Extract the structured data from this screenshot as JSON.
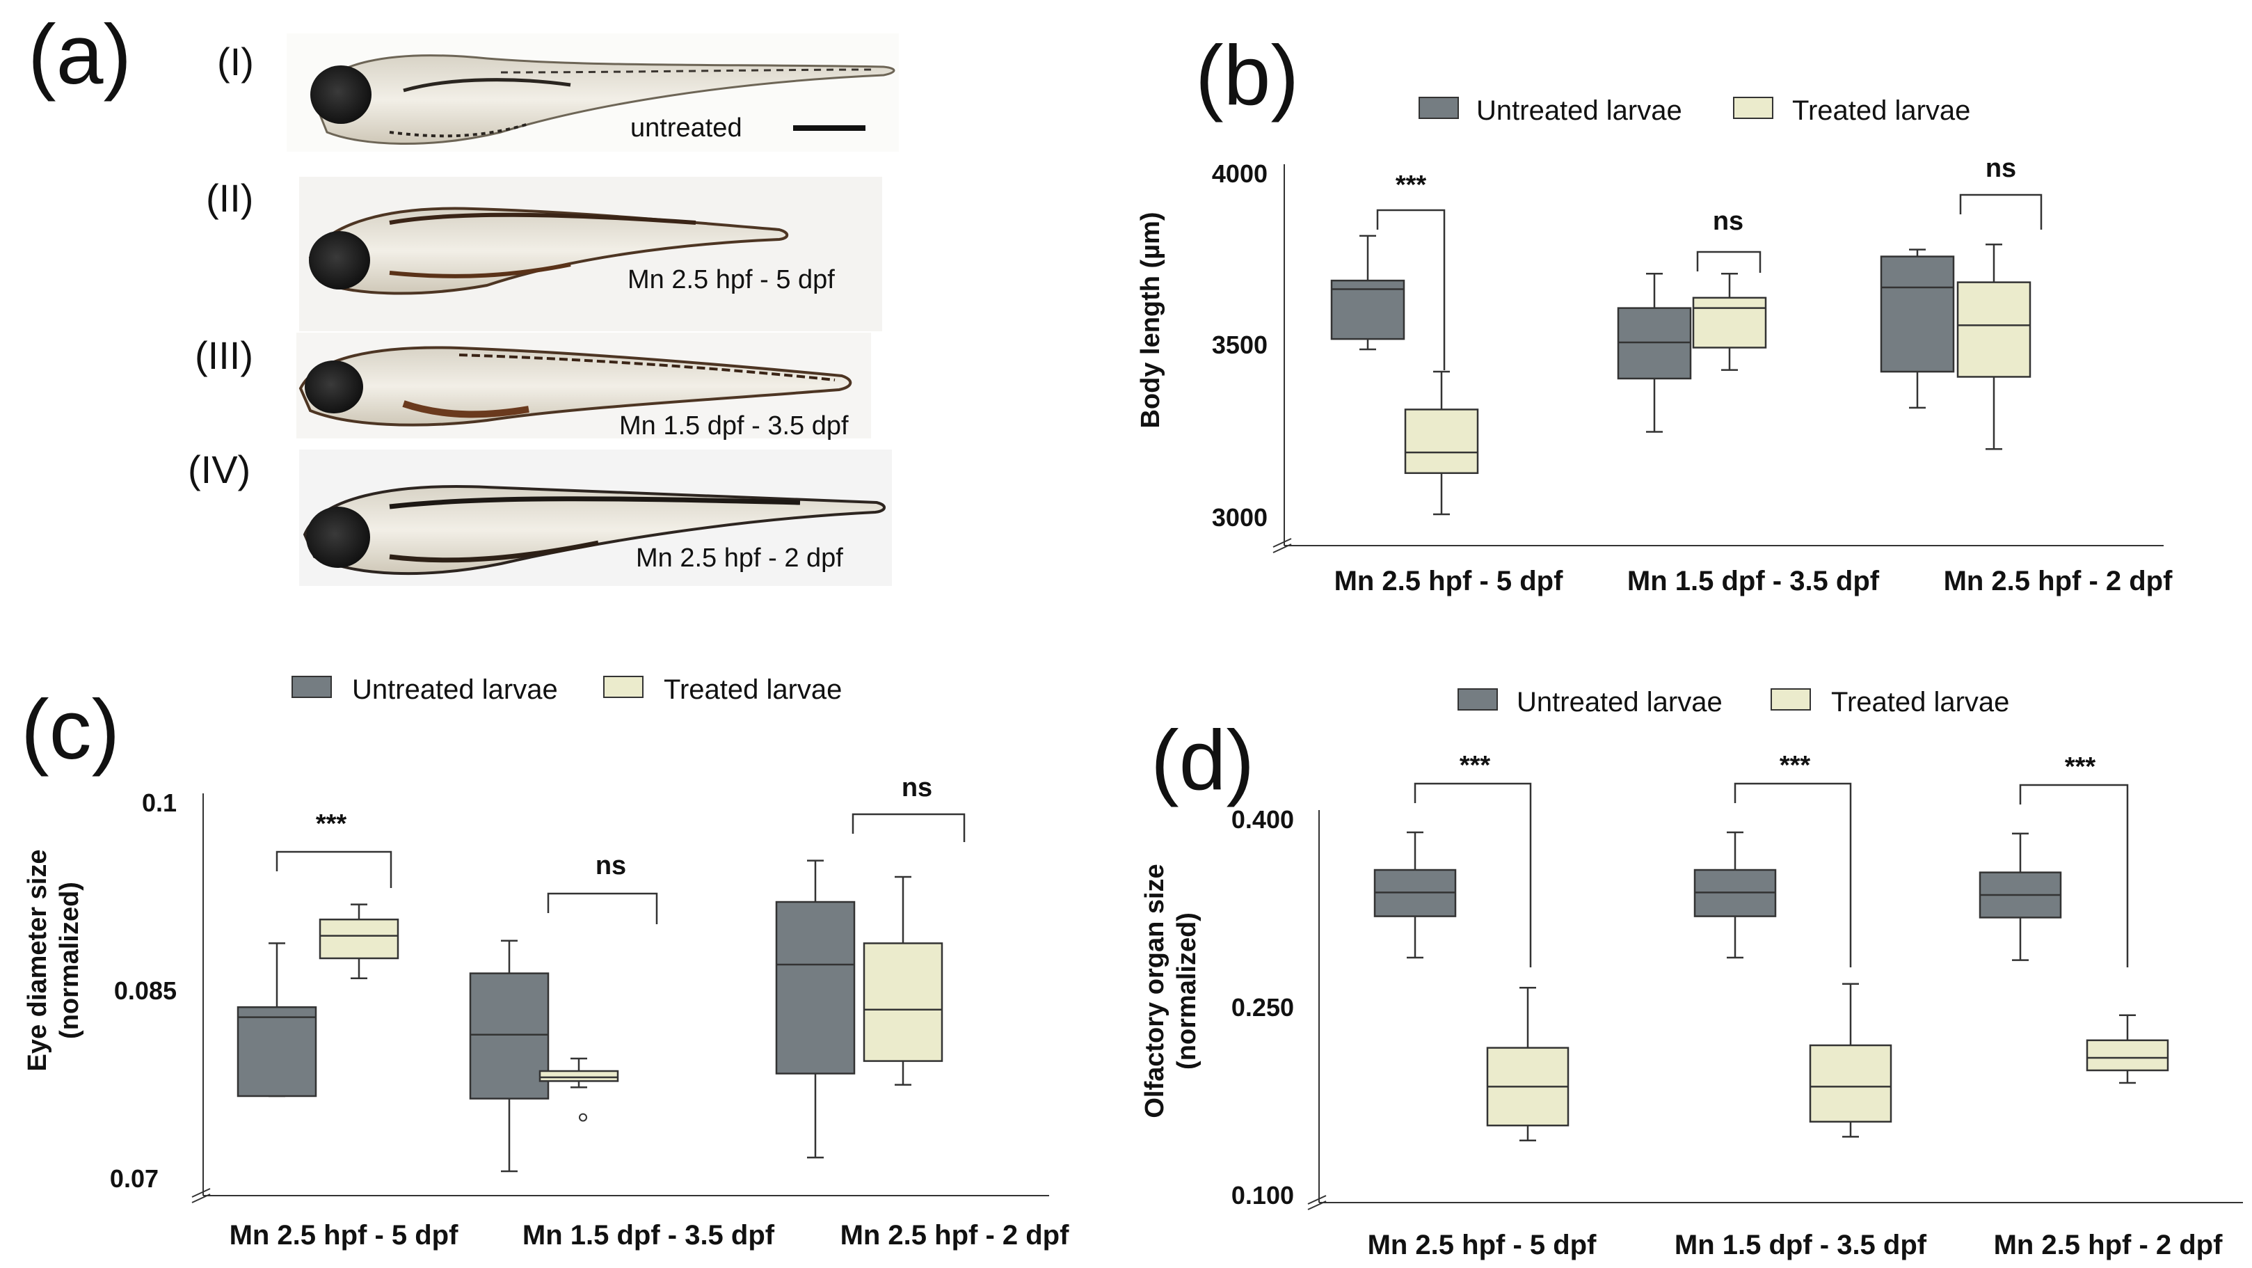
{
  "colors": {
    "untreated": "#757d82",
    "treated": "#ebebcc",
    "stroke": "#333333",
    "fish_dark": "#1a1612",
    "fish_brown": "#5a3218",
    "photo_bg": "#f4f4f4"
  },
  "panel_a": {
    "letter": "(a)",
    "images": [
      {
        "numeral": "(I)",
        "label": "untreated"
      },
      {
        "numeral": "(II)",
        "label": "Mn 2.5 hpf - 5 dpf"
      },
      {
        "numeral": "(III)",
        "label": "Mn 1.5 dpf - 3.5 dpf"
      },
      {
        "numeral": "(IV)",
        "label": "Mn 2.5 hpf - 2 dpf"
      }
    ]
  },
  "chart_data": [
    {
      "panel": "(b)",
      "type": "box",
      "title": "",
      "legend": [
        "Untreated larvae",
        "Treated larvae"
      ],
      "legend_position": "top",
      "ylabel": "Body length (µm)",
      "yticks": [
        "4000",
        "3500",
        "3000"
      ],
      "tick_values": [
        4000,
        3500,
        3000
      ],
      "ylim": [
        2920,
        4050
      ],
      "categories": [
        "Mn 2.5 hpf - 5 dpf",
        "Mn 1.5 dpf - 3.5 dpf",
        "Mn 2.5 hpf - 2 dpf"
      ],
      "series": [
        {
          "name": "Untreated larvae",
          "boxes": [
            {
              "min": 3490,
              "q1": 3520,
              "median": 3665,
              "q3": 3690,
              "max": 3820
            },
            {
              "min": 3250,
              "q1": 3405,
              "median": 3510,
              "q3": 3610,
              "max": 3710
            },
            {
              "min": 3320,
              "q1": 3425,
              "median": 3670,
              "q3": 3760,
              "max": 3780
            }
          ]
        },
        {
          "name": "Treated larvae",
          "boxes": [
            {
              "min": 3010,
              "q1": 3130,
              "median": 3190,
              "q3": 3315,
              "max": 3425
            },
            {
              "min": 3430,
              "q1": 3495,
              "median": 3610,
              "q3": 3640,
              "max": 3710
            },
            {
              "min": 3200,
              "q1": 3410,
              "median": 3560,
              "q3": 3685,
              "max": 3795
            }
          ]
        }
      ],
      "significance": [
        "***",
        "ns",
        "ns"
      ]
    },
    {
      "panel": "(c)",
      "type": "box",
      "title": "",
      "legend": [
        "Untreated larvae",
        "Treated larvae"
      ],
      "legend_position": "top",
      "ylabel": [
        "Eye diameter size",
        "(normalized)"
      ],
      "yticks": [
        "0.1",
        "0.085",
        "0.07"
      ],
      "tick_values": [
        0.1,
        0.085,
        0.07
      ],
      "ylim": [
        0.069,
        0.1
      ],
      "categories": [
        "Mn 2.5 hpf - 5 dpf",
        "Mn 1.5 dpf - 3.5 dpf",
        "Mn 2.5 hpf - 2 dpf"
      ],
      "series": [
        {
          "name": "Untreated larvae",
          "boxes": [
            {
              "min": 0.0765,
              "q1": 0.0765,
              "median": 0.0828,
              "q3": 0.0836,
              "max": 0.0887
            },
            {
              "min": 0.0705,
              "q1": 0.0763,
              "median": 0.0814,
              "q3": 0.0863,
              "max": 0.0889
            },
            {
              "min": 0.0716,
              "q1": 0.0783,
              "median": 0.087,
              "q3": 0.092,
              "max": 0.0953
            }
          ]
        },
        {
          "name": "Treated larvae",
          "boxes": [
            {
              "min": 0.0859,
              "q1": 0.0875,
              "median": 0.0893,
              "q3": 0.0906,
              "max": 0.0918
            },
            {
              "min": 0.0772,
              "q1": 0.0777,
              "median": 0.078,
              "q3": 0.0785,
              "max": 0.0795
            },
            {
              "min": 0.0774,
              "q1": 0.0793,
              "median": 0.0834,
              "q3": 0.0887,
              "max": 0.094
            }
          ]
        }
      ],
      "outliers": [
        {
          "series": "Treated larvae",
          "category": "Mn 1.5 dpf - 3.5 dpf",
          "value": 0.0748
        }
      ],
      "significance": [
        "***",
        "ns",
        "ns"
      ]
    },
    {
      "panel": "(d)",
      "type": "box",
      "title": "",
      "legend": [
        "Untreated larvae",
        "Treated larvae"
      ],
      "legend_position": "top",
      "ylabel": [
        "Olfactory organ size",
        "(normalized)"
      ],
      "yticks": [
        "0.400",
        "0.250",
        "0.100"
      ],
      "tick_values": [
        0.4,
        0.25,
        0.1
      ],
      "ylim": [
        0.095,
        0.41
      ],
      "categories": [
        "Mn 2.5 hpf - 5 dpf",
        "Mn 1.5 dpf - 3.5 dpf",
        "Mn 2.5 hpf - 2 dpf"
      ],
      "series": [
        {
          "name": "Untreated larvae",
          "boxes": [
            {
              "min": 0.29,
              "q1": 0.323,
              "median": 0.342,
              "q3": 0.36,
              "max": 0.39
            },
            {
              "min": 0.29,
              "q1": 0.323,
              "median": 0.342,
              "q3": 0.36,
              "max": 0.39
            },
            {
              "min": 0.288,
              "q1": 0.322,
              "median": 0.34,
              "q3": 0.358,
              "max": 0.389
            }
          ]
        },
        {
          "name": "Treated larvae",
          "boxes": [
            {
              "min": 0.144,
              "q1": 0.156,
              "median": 0.187,
              "q3": 0.218,
              "max": 0.266
            },
            {
              "min": 0.147,
              "q1": 0.159,
              "median": 0.187,
              "q3": 0.22,
              "max": 0.269
            },
            {
              "min": 0.19,
              "q1": 0.2,
              "median": 0.21,
              "q3": 0.224,
              "max": 0.244
            }
          ]
        }
      ],
      "significance": [
        "***",
        "***",
        "***"
      ]
    }
  ]
}
